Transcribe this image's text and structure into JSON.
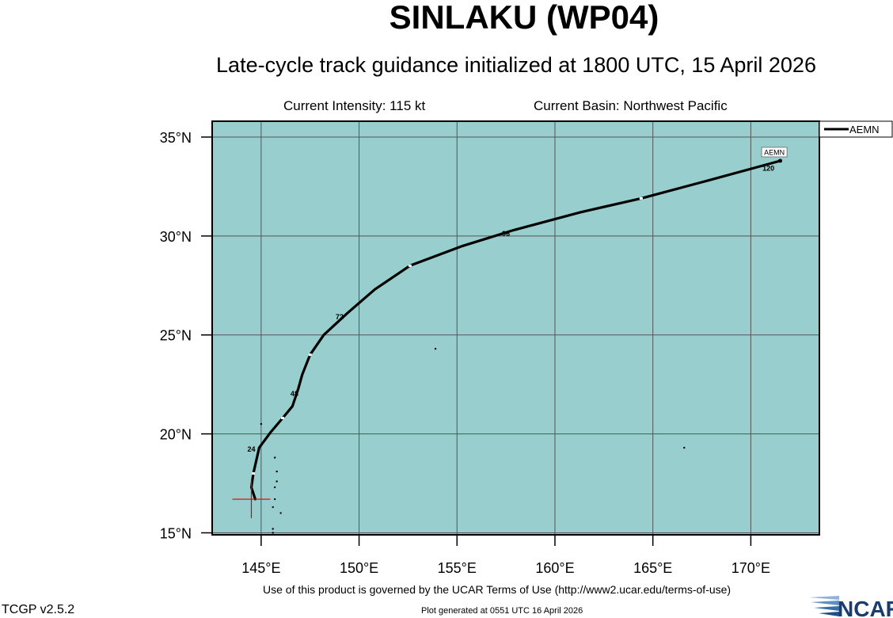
{
  "header": {
    "title": "SINLAKU (WP04)",
    "subtitle": "Late-cycle track guidance initialized at 1800 UTC, 15 April 2026",
    "intensity": "Current Intensity: 115 kt",
    "basin": "Current Basin: Northwest Pacific"
  },
  "footer": {
    "terms": "Use of this product is governed by the UCAR Terms of Use (http://www2.ucar.edu/terms-of-use)",
    "generated": "Plot generated at 0551 UTC   16 April 2026",
    "version": "TCGP v2.5.2",
    "logo_text": "NCAR"
  },
  "colors": {
    "ocean": "#98cece",
    "grid": "#555555",
    "track": "#000000",
    "initial_position_marker": "#dd0000"
  },
  "map": {
    "lon_range": [
      142.5,
      173.5
    ],
    "lat_range": [
      14.9,
      35.8
    ],
    "lon_ticks": [
      145,
      150,
      155,
      160,
      165,
      170
    ],
    "lon_tick_labels": [
      "145°E",
      "150°E",
      "155°E",
      "160°E",
      "165°E",
      "170°E"
    ],
    "lat_ticks": [
      15,
      20,
      25,
      30,
      35
    ],
    "lat_tick_labels": [
      "15°N",
      "20°N",
      "25°N",
      "30°N",
      "35°N"
    ],
    "grid": true,
    "legend_position": "top-right, outside plot",
    "initial_position": {
      "lon": 144.5,
      "lat": 16.7
    },
    "islands": [
      {
        "lon": 145.7,
        "lat": 18.8
      },
      {
        "lon": 145.8,
        "lat": 18.1
      },
      {
        "lon": 145.8,
        "lat": 17.6
      },
      {
        "lon": 145.7,
        "lat": 17.3
      },
      {
        "lon": 145.7,
        "lat": 16.7
      },
      {
        "lon": 145.6,
        "lat": 16.3
      },
      {
        "lon": 146.0,
        "lat": 16.0
      },
      {
        "lon": 145.6,
        "lat": 15.2
      },
      {
        "lon": 145.6,
        "lat": 15.0
      },
      {
        "lon": 145.0,
        "lat": 20.5
      },
      {
        "lon": 153.9,
        "lat": 24.3
      },
      {
        "lon": 166.6,
        "lat": 19.3
      }
    ]
  },
  "tracks": [
    {
      "model": "AEMN",
      "points": [
        {
          "lon": 144.7,
          "lat": 16.7
        },
        {
          "lon": 144.5,
          "lat": 17.3
        },
        {
          "lon": 144.6,
          "lat": 18.0
        },
        {
          "lon": 144.9,
          "lat": 19.3
        },
        {
          "lon": 145.5,
          "lat": 20.1
        },
        {
          "lon": 146.1,
          "lat": 20.8
        },
        {
          "lon": 146.6,
          "lat": 21.4
        },
        {
          "lon": 146.9,
          "lat": 22.3
        },
        {
          "lon": 147.1,
          "lat": 23.0
        },
        {
          "lon": 147.5,
          "lat": 24.0
        },
        {
          "lon": 148.2,
          "lat": 25.0
        },
        {
          "lon": 149.4,
          "lat": 26.1
        },
        {
          "lon": 150.8,
          "lat": 27.3
        },
        {
          "lon": 152.6,
          "lat": 28.5
        },
        {
          "lon": 155.3,
          "lat": 29.5
        },
        {
          "lon": 157.9,
          "lat": 30.3
        },
        {
          "lon": 161.3,
          "lat": 31.2
        },
        {
          "lon": 164.4,
          "lat": 31.9
        },
        {
          "lon": 167.8,
          "lat": 32.8
        },
        {
          "lon": 171.5,
          "lat": 33.8
        }
      ],
      "tau_markers": [
        {
          "lon": 144.6,
          "lat": 18.0
        },
        {
          "lon": 146.1,
          "lat": 20.8
        },
        {
          "lon": 147.5,
          "lat": 24.0
        },
        {
          "lon": 152.6,
          "lat": 28.5
        },
        {
          "lon": 164.4,
          "lat": 31.9
        }
      ],
      "hour_labels": [
        {
          "text": "24",
          "lon": 144.5,
          "lat": 19.1
        },
        {
          "text": "48",
          "lon": 146.7,
          "lat": 21.9
        },
        {
          "text": "72",
          "lon": 149.0,
          "lat": 25.8
        },
        {
          "text": "96",
          "lon": 157.5,
          "lat": 30.0
        },
        {
          "text": "120",
          "lon": 170.9,
          "lat": 33.3
        }
      ],
      "end_label": {
        "text": "AEMN",
        "lon": 171.2,
        "lat": 34.2
      }
    }
  ],
  "legend": [
    {
      "model": "AEMN"
    }
  ]
}
